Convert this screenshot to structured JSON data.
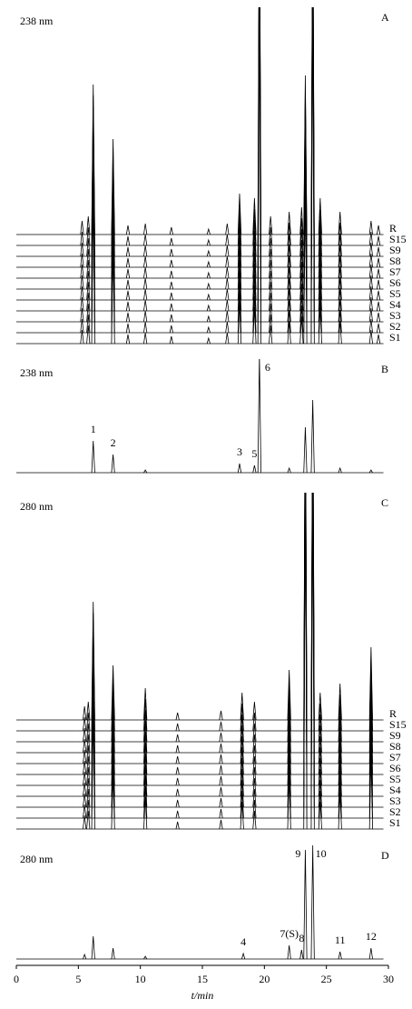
{
  "chart_data": [
    {
      "type": "line",
      "label": "238 nm",
      "letter": "A",
      "xlim": [
        0,
        30
      ],
      "ylim": [
        0,
        370
      ],
      "trace_names": [
        "R",
        "S15",
        "S9",
        "S8",
        "S7",
        "S6",
        "S5",
        "S4",
        "S3",
        "S2",
        "S1"
      ],
      "x": [
        5.3,
        5.8,
        6.2,
        7.8,
        9.0,
        10.4,
        12.5,
        15.5,
        17.0,
        18.0,
        19.2,
        19.6,
        20.5,
        22.0,
        23.0,
        23.3,
        23.9,
        24.5,
        26.1,
        28.6,
        29.2
      ],
      "values": [
        15,
        20,
        165,
        105,
        10,
        12,
        8,
        6,
        12,
        45,
        40,
        400,
        20,
        25,
        30,
        175,
        400,
        40,
        25,
        15,
        10
      ]
    },
    {
      "type": "line",
      "label": "238 nm",
      "letter": "B",
      "xlim": [
        0,
        30
      ],
      "ylim": [
        0,
        125
      ],
      "x": [
        6.2,
        7.8,
        10.4,
        18.0,
        19.2,
        19.6,
        22.0,
        23.3,
        23.9,
        26.1,
        28.6
      ],
      "values": [
        35,
        20,
        3,
        10,
        8,
        130,
        5,
        50,
        80,
        5,
        3
      ],
      "peak_labels": [
        "1",
        "2",
        null,
        "3",
        "5",
        "6",
        null,
        null,
        null,
        null,
        null
      ]
    },
    {
      "type": "line",
      "label": "280 nm",
      "letter": "C",
      "xlim": [
        0,
        30
      ],
      "ylim": [
        0,
        370
      ],
      "trace_names": [
        "R",
        "S15",
        "S9",
        "S8",
        "S7",
        "S6",
        "S5",
        "S4",
        "S3",
        "S2",
        "S1"
      ],
      "x": [
        5.5,
        5.8,
        6.2,
        7.8,
        10.4,
        13.0,
        16.5,
        18.2,
        19.2,
        22.0,
        23.3,
        23.9,
        24.5,
        26.1,
        28.6
      ],
      "values": [
        15,
        20,
        130,
        60,
        35,
        8,
        10,
        30,
        20,
        55,
        400,
        400,
        30,
        40,
        80
      ]
    },
    {
      "type": "line",
      "label": "280 nm",
      "letter": "D",
      "xlim": [
        0,
        30
      ],
      "ylim": [
        0,
        125
      ],
      "x": [
        5.5,
        6.2,
        7.8,
        10.4,
        18.3,
        22.0,
        23.0,
        23.3,
        23.9,
        26.1,
        28.6
      ],
      "values": [
        5,
        25,
        12,
        3,
        6,
        15,
        10,
        120,
        125,
        8,
        12
      ],
      "peak_labels": [
        null,
        null,
        null,
        null,
        "4",
        "7(S)",
        "8",
        "9",
        "10",
        "11",
        "12"
      ],
      "xticks": [
        0,
        5,
        10,
        15,
        20,
        25,
        30
      ],
      "x_label": "t/min"
    }
  ]
}
